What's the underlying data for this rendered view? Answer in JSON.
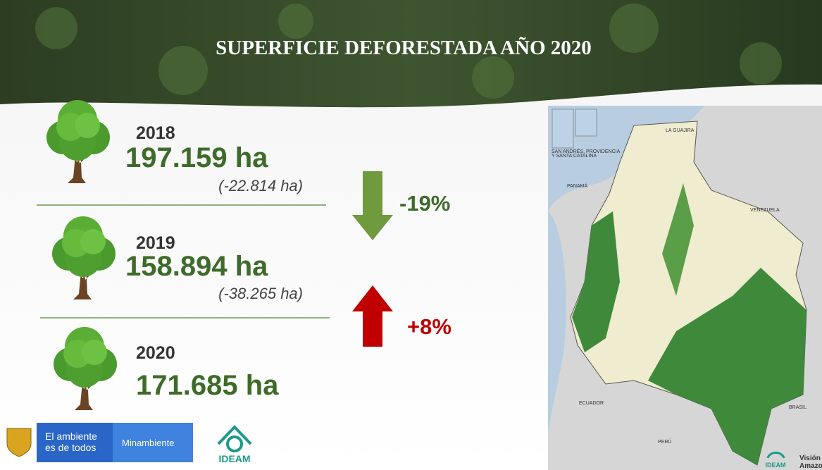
{
  "header": {
    "title": "SUPERFICIE DEFORESTADA AÑO 2020"
  },
  "years": [
    {
      "year": "2018",
      "area": "197.159 ha",
      "change": "(-22.814 ha)"
    },
    {
      "year": "2019",
      "area": "158.894 ha",
      "change": "(-38.265 ha)"
    },
    {
      "year": "2020",
      "area": "171.685 ha"
    }
  ],
  "trends": [
    {
      "label": "-19%"
    },
    {
      "label": "+8%"
    }
  ],
  "map": {
    "labels": [
      "PANAMÁ",
      "VENEZUELA",
      "ECUADOR",
      "PERÚ",
      "BRASIL",
      "LA GUAJIRA",
      "SAN ANDRÉS, PROVIDENCIA",
      "Y SANTA CATALINA"
    ],
    "logos": [
      "IDEAM",
      "Visión",
      "Amazon"
    ]
  },
  "footer": {
    "slogan_line1": "El ambiente",
    "slogan_line2": "es de todos",
    "ministry": "Minambiente",
    "institute": "IDEAM"
  }
}
